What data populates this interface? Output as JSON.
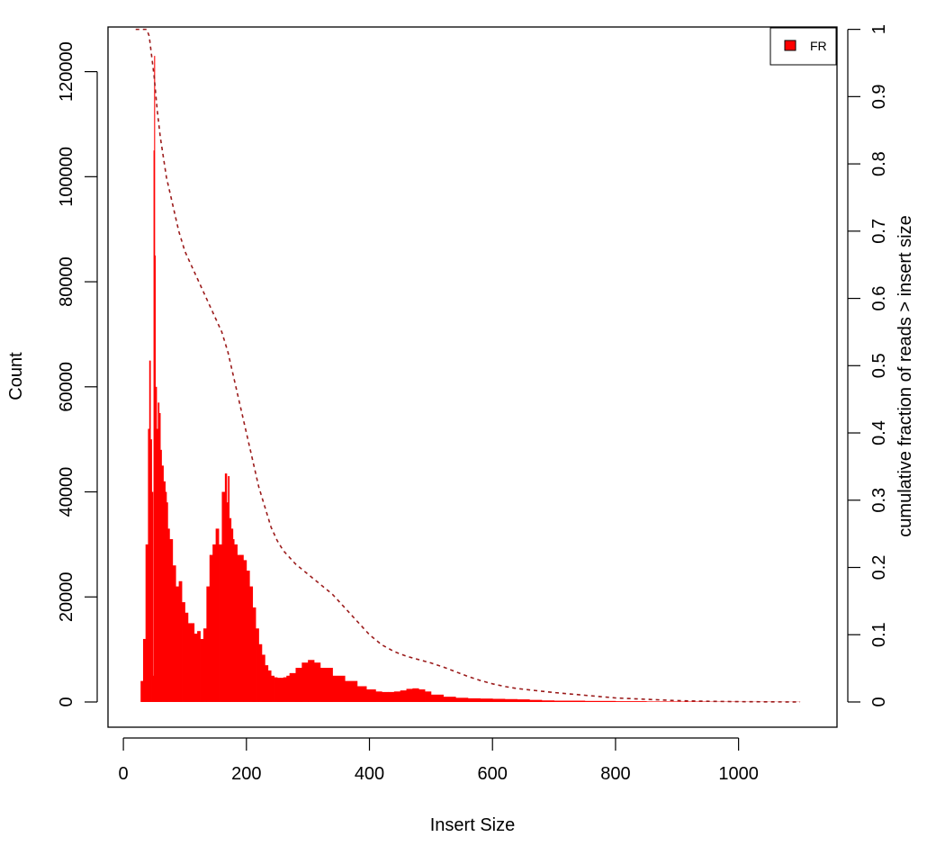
{
  "chart_data": {
    "type": "bar",
    "title": "",
    "xlabel": "Insert Size",
    "ylabel": "Count",
    "y2label": "cumulative fraction of reads > insert size",
    "xlim": [
      -25,
      1160
    ],
    "ylim": [
      -4800,
      128500
    ],
    "y2lim": [
      -0.0375,
      1.0035
    ],
    "xticks": [
      "0",
      "200",
      "400",
      "600",
      "800",
      "1000"
    ],
    "yticks": [
      "0",
      "20000",
      "40000",
      "60000",
      "80000",
      "100000",
      "120000"
    ],
    "y2ticks": [
      "0",
      "0.1",
      "0.2",
      "0.3",
      "0.4",
      "0.5",
      "0.6",
      "0.7",
      "0.8",
      "0.9",
      "1"
    ],
    "legend": {
      "position": "top-right",
      "entries": [
        {
          "label": "FR",
          "color": "#ff0000"
        }
      ]
    },
    "colors": {
      "histogram": "#ff0000",
      "cumulative": "#9b1b1b"
    },
    "series": [
      {
        "name": "FR",
        "type": "histogram",
        "x": [
          20,
          25,
          28,
          32,
          36,
          40,
          42,
          44,
          46,
          48,
          49,
          50,
          51,
          52,
          54,
          56,
          58,
          60,
          62,
          65,
          68,
          70,
          72,
          75,
          80,
          85,
          90,
          95,
          100,
          105,
          110,
          115,
          120,
          125,
          130,
          135,
          140,
          145,
          150,
          155,
          160,
          165,
          168,
          170,
          172,
          175,
          178,
          180,
          185,
          190,
          195,
          200,
          205,
          210,
          215,
          220,
          225,
          230,
          235,
          240,
          245,
          250,
          255,
          260,
          265,
          270,
          280,
          290,
          300,
          310,
          320,
          340,
          360,
          380,
          395,
          410,
          420,
          430,
          440,
          450,
          460,
          470,
          480,
          490,
          500,
          520,
          540,
          560,
          580,
          600,
          620,
          640,
          660,
          680,
          700,
          750,
          800,
          850,
          900,
          950,
          1000,
          1050,
          1100
        ],
        "values": [
          0,
          0,
          4000,
          12000,
          30000,
          52000,
          65000,
          50000,
          40000,
          5000,
          105000,
          123000,
          85000,
          60000,
          52000,
          57000,
          55000,
          48000,
          45000,
          42000,
          40000,
          38000,
          33000,
          31000,
          26000,
          22000,
          23000,
          19000,
          17000,
          15000,
          15000,
          13000,
          13500,
          12000,
          14000,
          22000,
          28000,
          30000,
          33000,
          30000,
          40000,
          43500,
          38000,
          43000,
          35000,
          33000,
          31000,
          30000,
          28000,
          28000,
          27000,
          25000,
          22000,
          18000,
          14000,
          11000,
          9000,
          7000,
          6000,
          5000,
          4700,
          4600,
          4600,
          4700,
          5000,
          5500,
          6500,
          7500,
          8000,
          7500,
          6500,
          5000,
          4000,
          3000,
          2400,
          2000,
          1900,
          1900,
          2000,
          2200,
          2500,
          2600,
          2400,
          2000,
          1400,
          1000,
          800,
          700,
          650,
          600,
          550,
          500,
          400,
          300,
          250,
          200,
          150,
          100,
          80,
          60,
          40,
          30,
          0
        ]
      },
      {
        "name": "cumulative",
        "type": "line",
        "style": "dashed",
        "axis": "right",
        "x": [
          20,
          38,
          42,
          46,
          50,
          55,
          60,
          65,
          70,
          80,
          90,
          100,
          110,
          120,
          130,
          140,
          150,
          160,
          165,
          170,
          180,
          190,
          200,
          210,
          220,
          230,
          240,
          250,
          260,
          270,
          280,
          300,
          320,
          340,
          360,
          380,
          400,
          420,
          440,
          460,
          480,
          500,
          520,
          540,
          560,
          580,
          600,
          620,
          640,
          660,
          680,
          700,
          750,
          800,
          850,
          900,
          950,
          1000,
          1050,
          1100
        ],
        "values": [
          1.0,
          1.0,
          0.99,
          0.96,
          0.93,
          0.88,
          0.84,
          0.81,
          0.78,
          0.74,
          0.7,
          0.67,
          0.65,
          0.63,
          0.61,
          0.59,
          0.57,
          0.55,
          0.535,
          0.52,
          0.48,
          0.44,
          0.4,
          0.36,
          0.32,
          0.29,
          0.26,
          0.24,
          0.225,
          0.215,
          0.205,
          0.19,
          0.175,
          0.16,
          0.14,
          0.12,
          0.1,
          0.085,
          0.075,
          0.068,
          0.063,
          0.058,
          0.052,
          0.045,
          0.038,
          0.032,
          0.027,
          0.023,
          0.02,
          0.018,
          0.016,
          0.014,
          0.01,
          0.006,
          0.004,
          0.002,
          0.001,
          0.0005,
          0.0002,
          0.0
        ]
      }
    ]
  }
}
